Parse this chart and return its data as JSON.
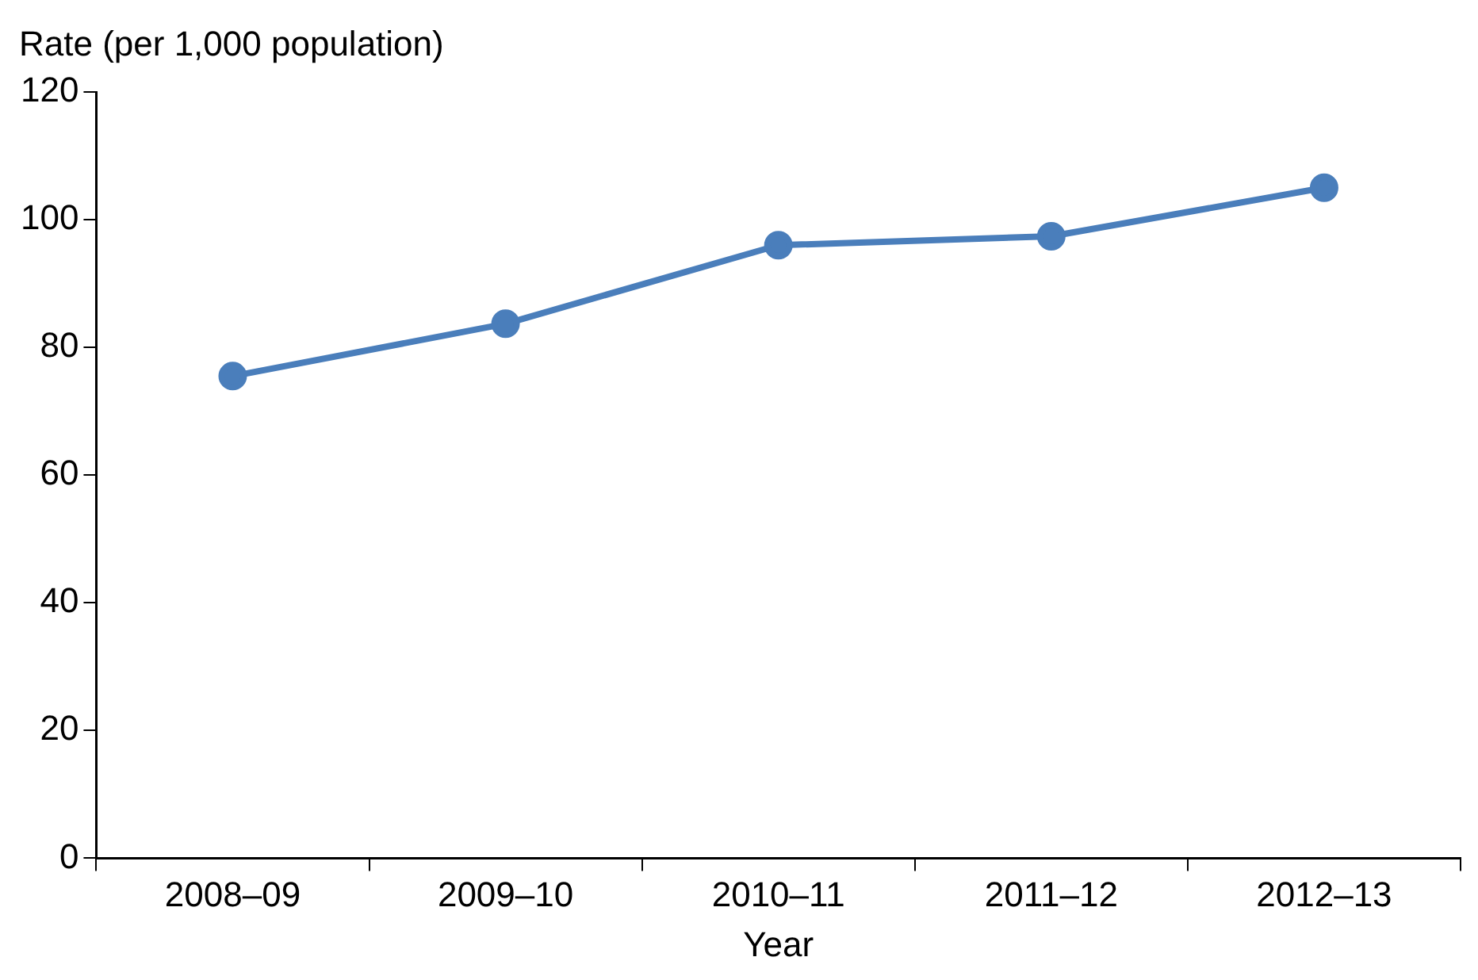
{
  "chart_data": {
    "type": "line",
    "ylabel": "Rate (per 1,000 population)",
    "xlabel": "Year",
    "categories": [
      "2008–09",
      "2009–10",
      "2010–11",
      "2011–12",
      "2012–13"
    ],
    "series": [
      {
        "color": "#4a7ebb",
        "values": [
          75.5,
          83.7,
          96,
          97.4,
          105
        ]
      }
    ],
    "ylim": [
      0,
      120
    ],
    "yticks": [
      0,
      20,
      40,
      60,
      80,
      100,
      120
    ],
    "grid": false,
    "legend": false,
    "marker": "circle",
    "line_style": "solid"
  }
}
